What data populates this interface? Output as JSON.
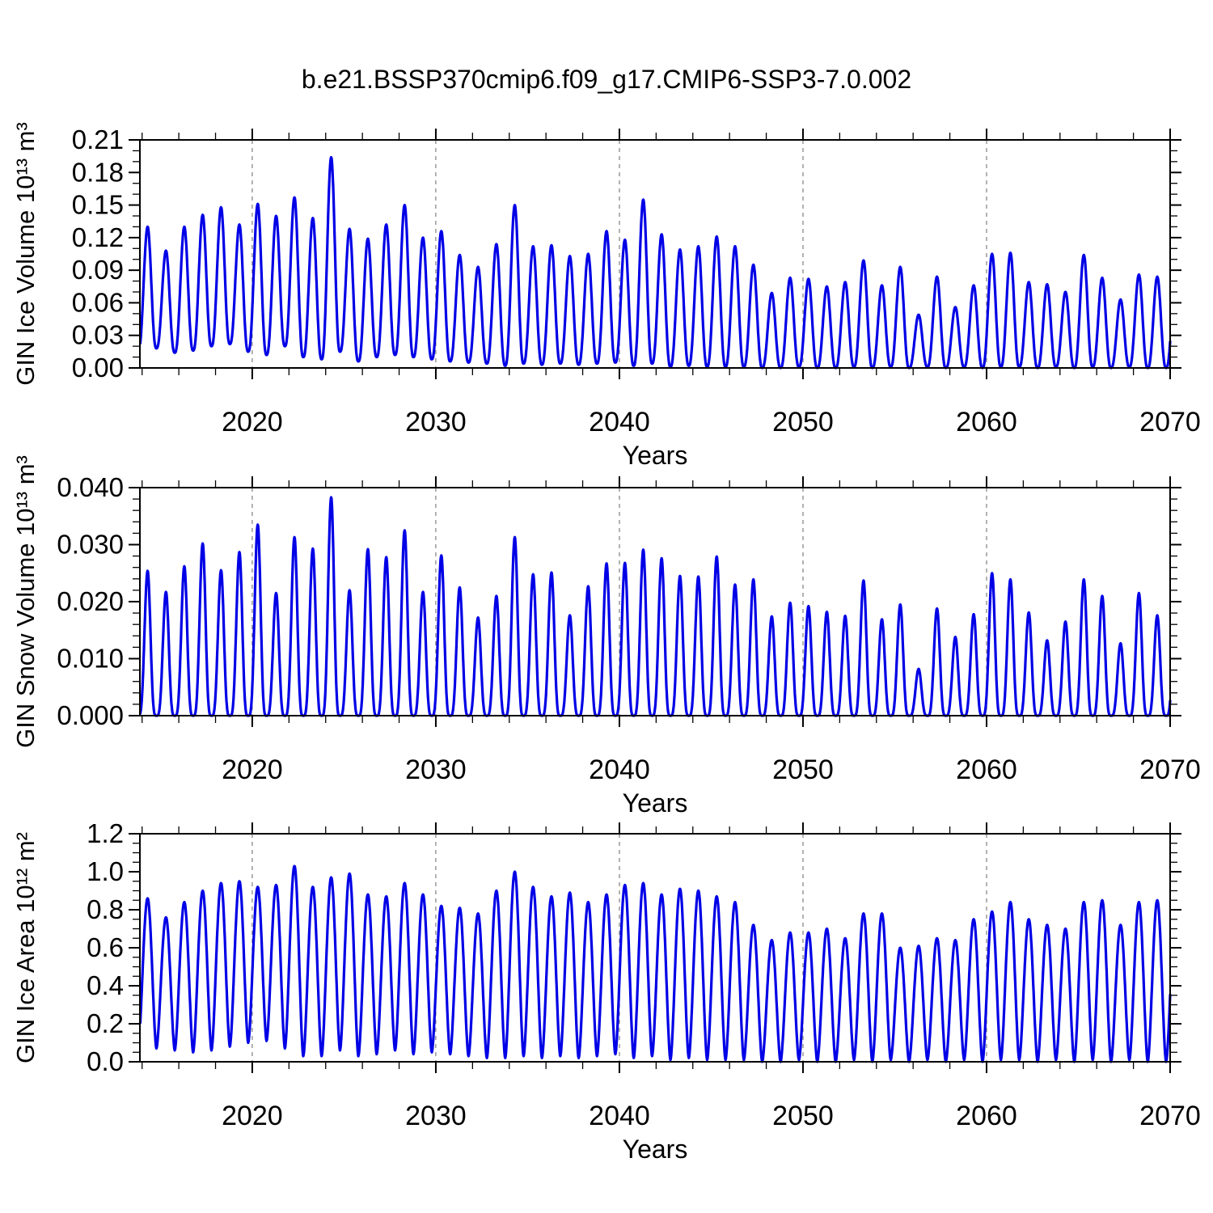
{
  "title": "b.e21.BSSP370cmip6.f09_g17.CMIP6-SSP3-7.0.002",
  "colors": {
    "line": "#0000e6",
    "grid": "#7f7f7f",
    "axis": "#000000",
    "background": "#ffffff"
  },
  "chart_data": [
    {
      "id": "gin-ice-volume",
      "type": "line",
      "ylabel": "GIN Ice Volume 10¹³ m³",
      "xlabel": "Years",
      "line_color": "#0000e6",
      "xlim": [
        2013.88,
        2070
      ],
      "ylim": [
        0,
        0.21
      ],
      "xtick_values": [
        2020,
        2030,
        2040,
        2050,
        2060,
        2070
      ],
      "xtick_labels": [
        "2020",
        "2030",
        "2040",
        "2050",
        "2060",
        "2070"
      ],
      "x_minor_step": 2,
      "grid_x_values": [
        2020,
        2030,
        2040,
        2050,
        2060
      ],
      "ytick_values": [
        0,
        0.03,
        0.06,
        0.09,
        0.12,
        0.15,
        0.18,
        0.21
      ],
      "ytick_labels": [
        "0.00",
        "0.03",
        "0.06",
        "0.09",
        "0.12",
        "0.15",
        "0.18",
        "0.21"
      ],
      "y_minor_step": 0.01,
      "legend": "none",
      "grid": "vertical-dashed",
      "series": {
        "name": "GIN ice volume seasonal cycle",
        "start_year": 2014,
        "peak_phase": 0.3,
        "trough_phase": 0.78,
        "sharpness": 1.3,
        "annual_peaks": [
          0.13,
          0.108,
          0.13,
          0.141,
          0.148,
          0.132,
          0.151,
          0.14,
          0.157,
          0.138,
          0.194,
          0.128,
          0.119,
          0.132,
          0.15,
          0.12,
          0.126,
          0.104,
          0.093,
          0.114,
          0.15,
          0.112,
          0.113,
          0.103,
          0.105,
          0.126,
          0.118,
          0.155,
          0.123,
          0.109,
          0.112,
          0.121,
          0.112,
          0.095,
          0.069,
          0.083,
          0.082,
          0.075,
          0.079,
          0.099,
          0.076,
          0.093,
          0.049,
          0.084,
          0.056,
          0.076,
          0.105,
          0.106,
          0.079,
          0.077,
          0.07,
          0.104,
          0.083,
          0.063,
          0.086,
          0.084,
          0.085
        ],
        "annual_troughs": [
          0.015,
          0.018,
          0.014,
          0.016,
          0.02,
          0.022,
          0.015,
          0.012,
          0.02,
          0.01,
          0.008,
          0.015,
          0.006,
          0.01,
          0.012,
          0.01,
          0.008,
          0.006,
          0.005,
          0.004,
          0.002,
          0.004,
          0.003,
          0.004,
          0.003,
          0.004,
          0.005,
          0.002,
          0.004,
          0.001,
          0.002,
          0.001,
          0.001,
          0.001,
          0.0,
          0.0,
          0.001,
          0.0,
          0.0,
          0.001,
          0.0,
          0.001,
          0.0,
          0.001,
          0.0,
          0.001,
          0.0,
          0.001,
          0.001,
          0.0,
          0.001,
          0.0,
          0.001,
          0.0,
          0.001,
          0.0,
          0.0
        ]
      }
    },
    {
      "id": "gin-snow-volume",
      "type": "line",
      "ylabel": "GIN Snow Volume 10¹³ m³",
      "xlabel": "Years",
      "line_color": "#0000e6",
      "xlim": [
        2013.88,
        2070
      ],
      "ylim": [
        0,
        0.04
      ],
      "xtick_values": [
        2020,
        2030,
        2040,
        2050,
        2060,
        2070
      ],
      "xtick_labels": [
        "2020",
        "2030",
        "2040",
        "2050",
        "2060",
        "2070"
      ],
      "x_minor_step": 2,
      "grid_x_values": [
        2020,
        2030,
        2040,
        2050,
        2060
      ],
      "ytick_values": [
        0,
        0.01,
        0.02,
        0.03,
        0.04
      ],
      "ytick_labels": [
        "0.000",
        "0.010",
        "0.020",
        "0.030",
        "0.040"
      ],
      "y_minor_step": 0.002,
      "legend": "none",
      "grid": "vertical-dashed",
      "series": {
        "name": "GIN snow volume seasonal cycle",
        "start_year": 2014,
        "peak_phase": 0.3,
        "trough_phase": 0.78,
        "sharpness": 2.0,
        "annual_peaks": [
          0.0254,
          0.0217,
          0.0262,
          0.0302,
          0.0255,
          0.0287,
          0.0335,
          0.0215,
          0.0313,
          0.0293,
          0.0383,
          0.022,
          0.0292,
          0.0278,
          0.0325,
          0.0217,
          0.0281,
          0.0225,
          0.0172,
          0.021,
          0.0313,
          0.0248,
          0.0251,
          0.0176,
          0.0227,
          0.0267,
          0.0268,
          0.0291,
          0.0276,
          0.0245,
          0.0244,
          0.0279,
          0.023,
          0.0239,
          0.0174,
          0.0198,
          0.0192,
          0.0182,
          0.0175,
          0.0237,
          0.0169,
          0.0195,
          0.0082,
          0.0188,
          0.0138,
          0.0178,
          0.025,
          0.0239,
          0.0181,
          0.0132,
          0.0165,
          0.0239,
          0.021,
          0.0127,
          0.0215,
          0.0176,
          0.018
        ],
        "annual_troughs": [
          0,
          0,
          0,
          0,
          0,
          0,
          0,
          0,
          0,
          0,
          0,
          0,
          0,
          0,
          0,
          0,
          0,
          0,
          0,
          0,
          0,
          0,
          0,
          0,
          0,
          0,
          0,
          0,
          0,
          0,
          0,
          0,
          0,
          0,
          0,
          0,
          0,
          0,
          0,
          0,
          0,
          0,
          0,
          0,
          0,
          0,
          0,
          0,
          0,
          0,
          0,
          0,
          0,
          0,
          0,
          0,
          0
        ]
      }
    },
    {
      "id": "gin-ice-area",
      "type": "line",
      "ylabel": "GIN Ice Area 10¹² m²",
      "xlabel": "Years",
      "line_color": "#0000e6",
      "xlim": [
        2013.88,
        2070
      ],
      "ylim": [
        0,
        1.2
      ],
      "xtick_values": [
        2020,
        2030,
        2040,
        2050,
        2060,
        2070
      ],
      "xtick_labels": [
        "2020",
        "2030",
        "2040",
        "2050",
        "2060",
        "2070"
      ],
      "x_minor_step": 2,
      "grid_x_values": [
        2020,
        2030,
        2040,
        2050,
        2060
      ],
      "ytick_values": [
        0,
        0.2,
        0.4,
        0.6,
        0.8,
        1.0,
        1.2
      ],
      "ytick_labels": [
        "0.0",
        "0.2",
        "0.4",
        "0.6",
        "0.8",
        "1.0",
        "1.2"
      ],
      "y_minor_step": 0.05,
      "legend": "none",
      "grid": "vertical-dashed",
      "series": {
        "name": "GIN ice area seasonal cycle",
        "start_year": 2014,
        "peak_phase": 0.3,
        "trough_phase": 0.78,
        "sharpness": 0.85,
        "annual_peaks": [
          0.86,
          0.76,
          0.84,
          0.9,
          0.94,
          0.95,
          0.92,
          0.93,
          1.03,
          0.92,
          0.97,
          0.99,
          0.88,
          0.87,
          0.94,
          0.88,
          0.82,
          0.81,
          0.78,
          0.9,
          1.0,
          0.92,
          0.87,
          0.89,
          0.84,
          0.88,
          0.93,
          0.94,
          0.88,
          0.91,
          0.9,
          0.87,
          0.84,
          0.72,
          0.64,
          0.68,
          0.68,
          0.7,
          0.65,
          0.78,
          0.78,
          0.6,
          0.61,
          0.65,
          0.64,
          0.75,
          0.79,
          0.84,
          0.75,
          0.72,
          0.7,
          0.84,
          0.85,
          0.72,
          0.84,
          0.85,
          0.8
        ],
        "annual_troughs": [
          0.07,
          0.07,
          0.06,
          0.05,
          0.06,
          0.08,
          0.1,
          0.11,
          0.07,
          0.03,
          0.03,
          0.06,
          0.03,
          0.04,
          0.06,
          0.04,
          0.05,
          0.04,
          0.03,
          0.02,
          0.02,
          0.03,
          0.02,
          0.03,
          0.02,
          0.03,
          0.04,
          0.02,
          0.03,
          0.01,
          0.02,
          0.01,
          0.01,
          0.01,
          0.0,
          0.0,
          0.01,
          0.0,
          0.0,
          0.01,
          0.0,
          0.01,
          0.0,
          0.01,
          0.0,
          0.01,
          0.0,
          0.01,
          0.01,
          0.0,
          0.01,
          0.0,
          0.01,
          0.0,
          0.01,
          0.0,
          0.0
        ]
      }
    }
  ]
}
